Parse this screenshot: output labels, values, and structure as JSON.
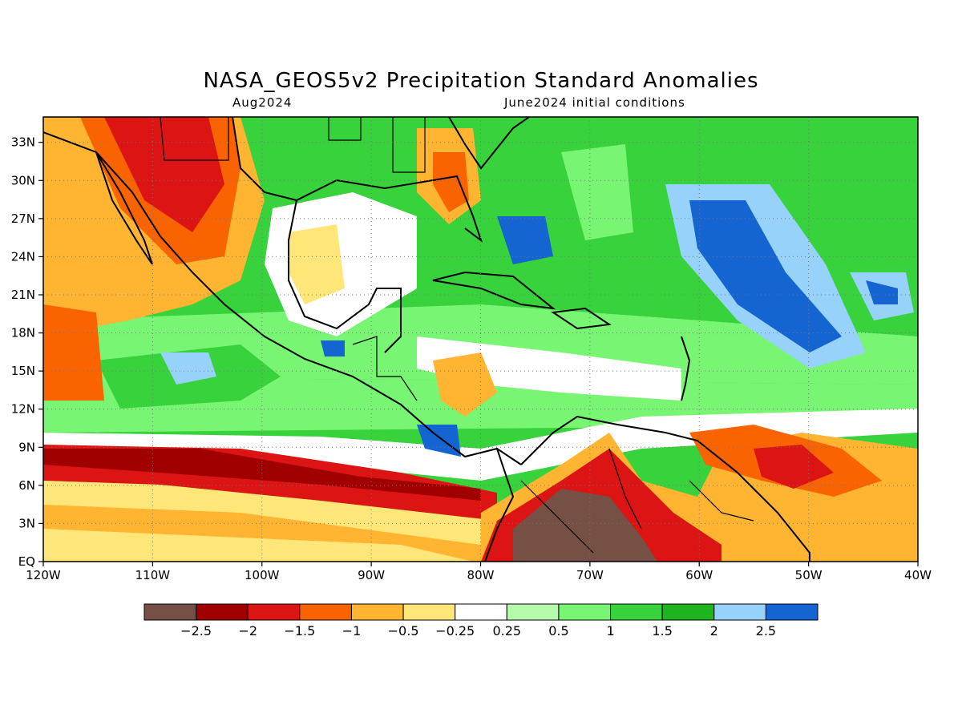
{
  "header": {
    "title": "NASA_GEOS5v2 Precipitation Standard Anomalies",
    "target_month": "Aug2024",
    "initial_conditions": "June2024 initial conditions"
  },
  "map": {
    "lon_range": [
      -120,
      -40
    ],
    "lat_range": [
      0,
      35
    ],
    "x_ticks": [
      {
        "lon": -120,
        "label": "120W"
      },
      {
        "lon": -110,
        "label": "110W"
      },
      {
        "lon": -100,
        "label": "100W"
      },
      {
        "lon": -90,
        "label": "90W"
      },
      {
        "lon": -80,
        "label": "80W"
      },
      {
        "lon": -70,
        "label": "70W"
      },
      {
        "lon": -60,
        "label": "60W"
      },
      {
        "lon": -50,
        "label": "50W"
      },
      {
        "lon": -40,
        "label": "40W"
      }
    ],
    "y_ticks": [
      {
        "lat": 0,
        "label": "EQ"
      },
      {
        "lat": 3,
        "label": "3N"
      },
      {
        "lat": 6,
        "label": "6N"
      },
      {
        "lat": 9,
        "label": "9N"
      },
      {
        "lat": 12,
        "label": "12N"
      },
      {
        "lat": 15,
        "label": "15N"
      },
      {
        "lat": 18,
        "label": "18N"
      },
      {
        "lat": 21,
        "label": "21N"
      },
      {
        "lat": 24,
        "label": "24N"
      },
      {
        "lat": 27,
        "label": "27N"
      },
      {
        "lat": 30,
        "label": "30N"
      },
      {
        "lat": 33,
        "label": "33N"
      }
    ],
    "grid": "dotted"
  },
  "colorbar": {
    "colors": [
      "#765044",
      "#a00000",
      "#dc1414",
      "#fa6400",
      "#ffb432",
      "#ffe678",
      "#ffffff",
      "#b4faaa",
      "#78f573",
      "#37d23c",
      "#1eb41e",
      "#96d2fa",
      "#1464d2"
    ],
    "labels": [
      "−2.5",
      "−2",
      "−1.5",
      "−1",
      "−0.5",
      "−0.25",
      "0.25",
      "0.5",
      "1",
      "1.5",
      "2",
      "2.5"
    ]
  }
}
